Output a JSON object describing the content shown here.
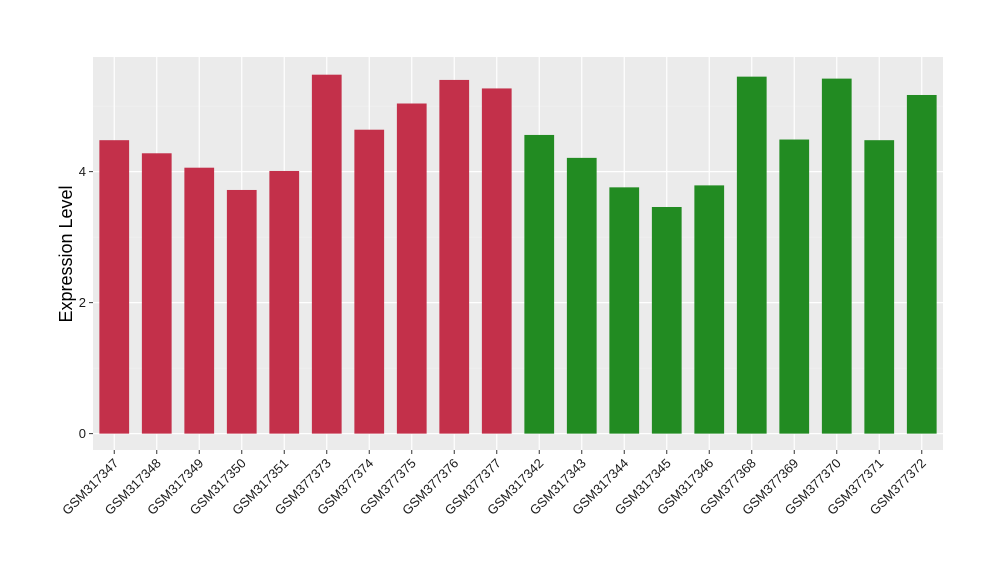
{
  "chart_data": {
    "type": "bar",
    "xlabel": "",
    "ylabel": "Expression Level",
    "ylim": [
      -0.25,
      5.75
    ],
    "yticks": [
      0,
      2,
      4
    ],
    "grid": true,
    "legend": "none",
    "categories": [
      "GSM317347",
      "GSM317348",
      "GSM317349",
      "GSM317350",
      "GSM317351",
      "GSM377373",
      "GSM377374",
      "GSM377375",
      "GSM377376",
      "GSM377377",
      "GSM317342",
      "GSM317343",
      "GSM317344",
      "GSM317345",
      "GSM317346",
      "GSM377368",
      "GSM377369",
      "GSM377370",
      "GSM377371",
      "GSM377372"
    ],
    "values": [
      4.48,
      4.28,
      4.06,
      3.72,
      4.01,
      5.48,
      4.64,
      5.04,
      5.4,
      5.27,
      4.56,
      4.21,
      3.76,
      3.46,
      3.79,
      5.45,
      4.49,
      5.42,
      4.48,
      5.17
    ],
    "bar_colors": [
      "#C3304A",
      "#C3304A",
      "#C3304A",
      "#C3304A",
      "#C3304A",
      "#C3304A",
      "#C3304A",
      "#C3304A",
      "#C3304A",
      "#C3304A",
      "#228B22",
      "#228B22",
      "#228B22",
      "#228B22",
      "#228B22",
      "#228B22",
      "#228B22",
      "#228B22",
      "#228B22",
      "#228B22"
    ]
  }
}
